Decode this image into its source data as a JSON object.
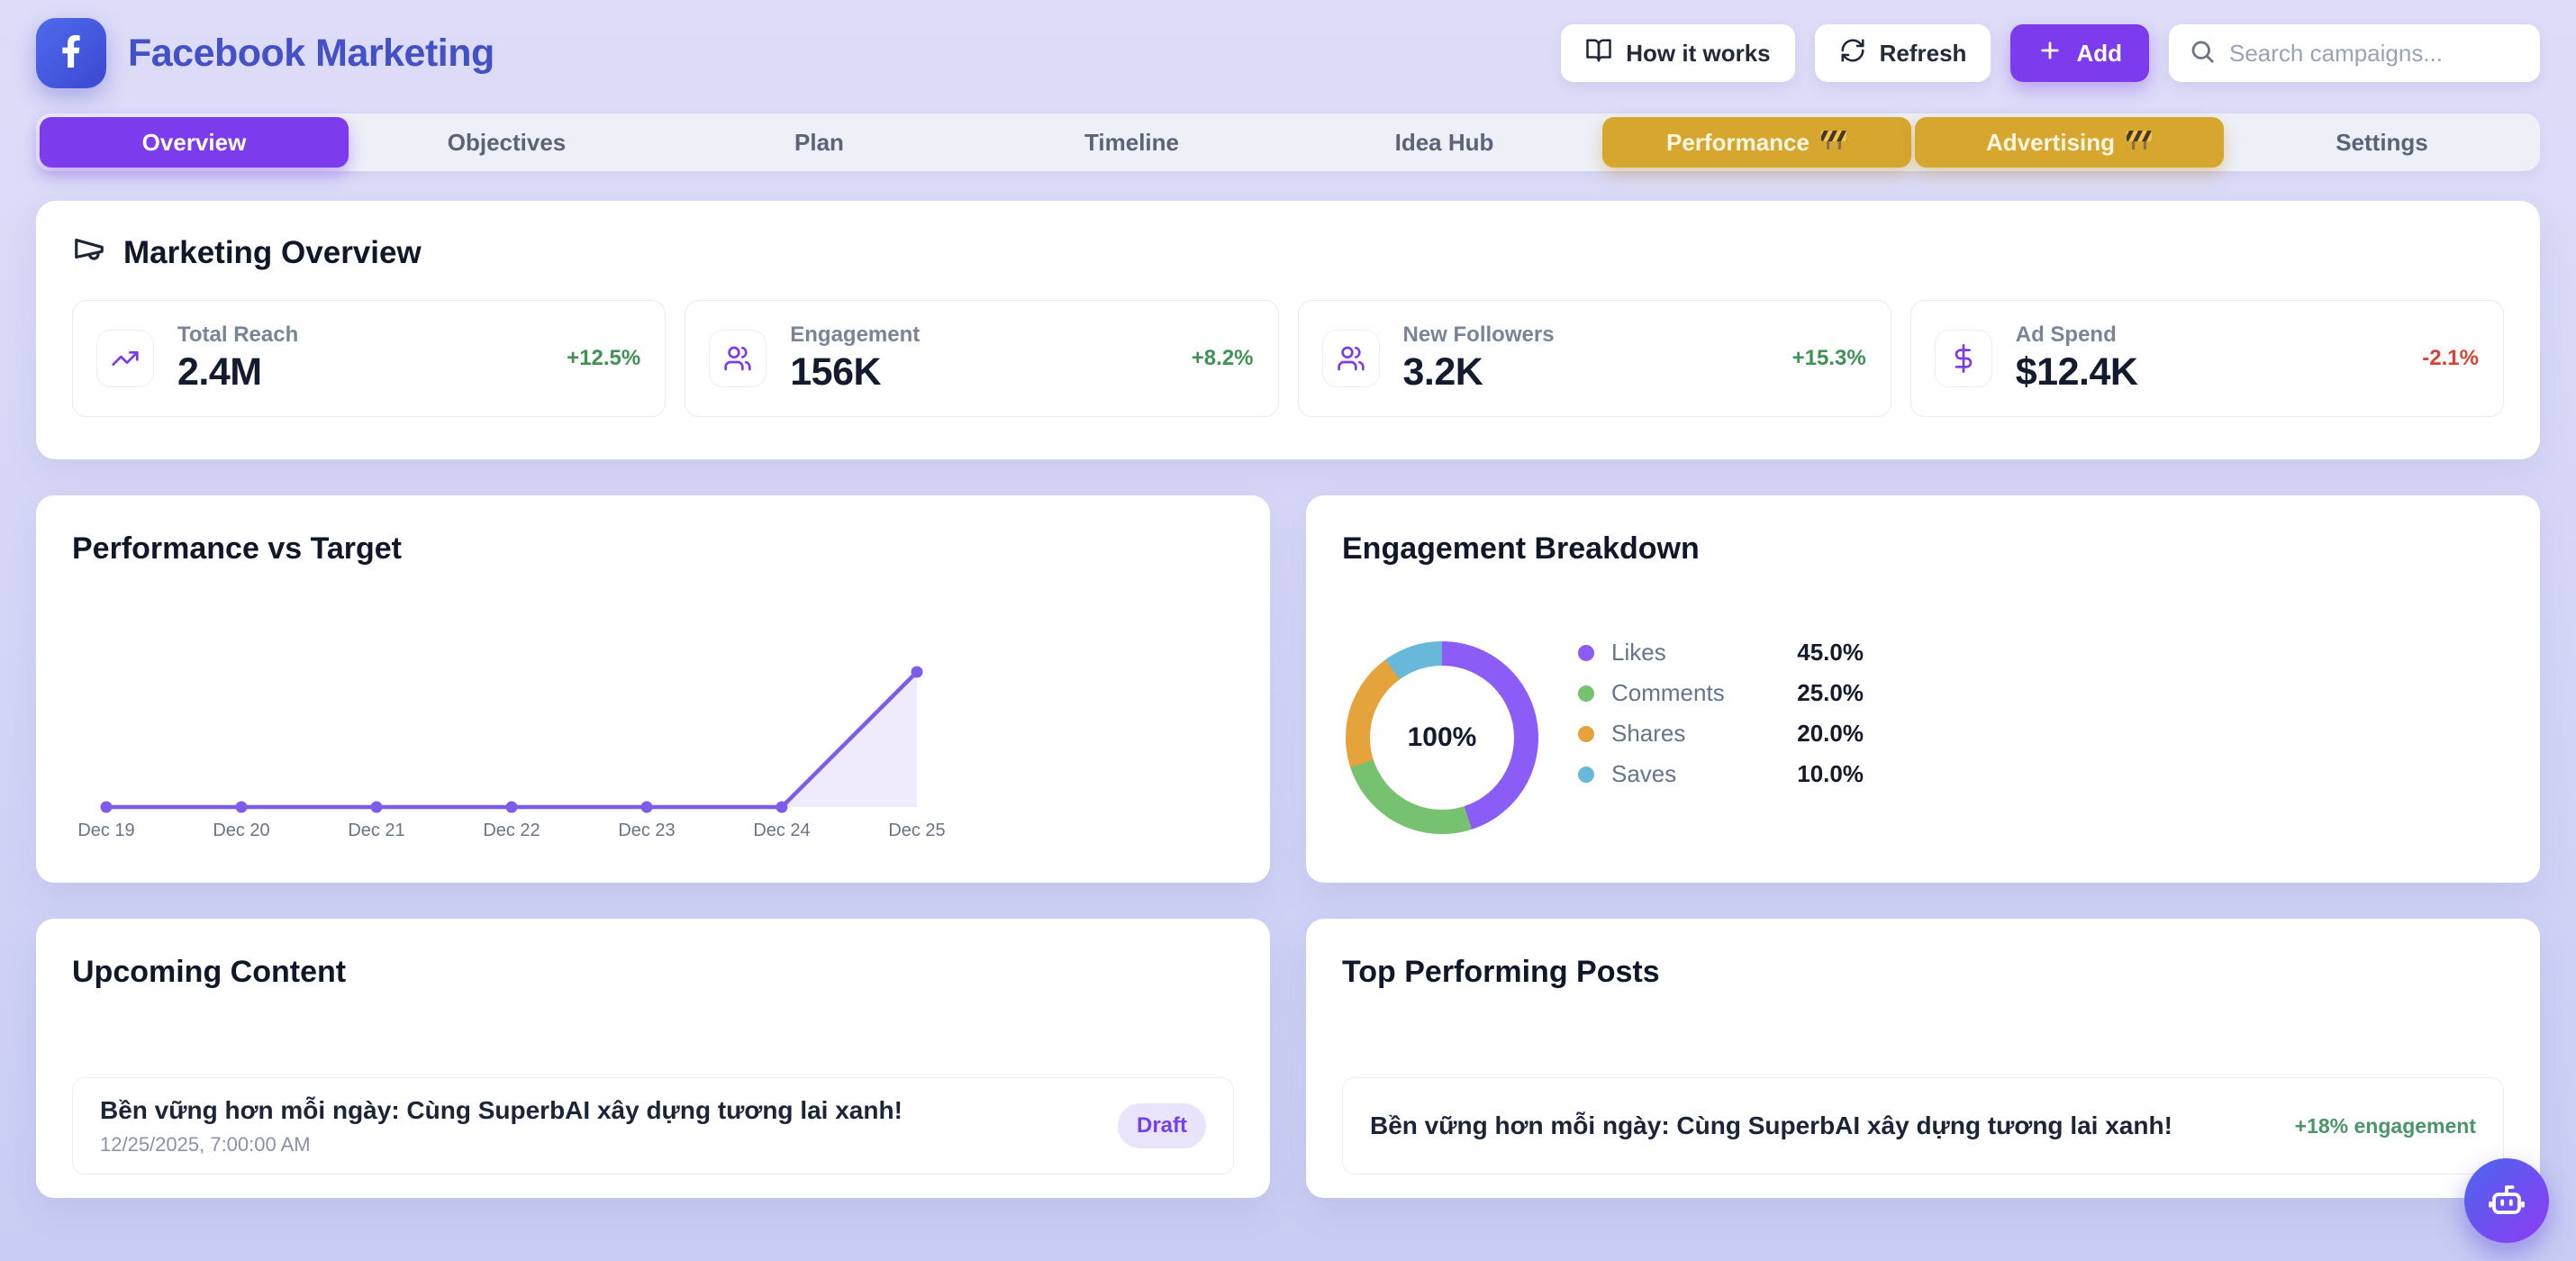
{
  "header": {
    "title": "Facebook Marketing",
    "how_it_works_label": "How it works",
    "refresh_label": "Refresh",
    "add_label": "Add",
    "search_placeholder": "Search campaigns..."
  },
  "tabs": [
    {
      "label": "Overview",
      "state": "active"
    },
    {
      "label": "Objectives",
      "state": "normal"
    },
    {
      "label": "Plan",
      "state": "normal"
    },
    {
      "label": "Timeline",
      "state": "normal"
    },
    {
      "label": "Idea Hub",
      "state": "normal"
    },
    {
      "label": "Performance",
      "state": "gold",
      "badge": "construction"
    },
    {
      "label": "Advertising",
      "state": "gold",
      "badge": "construction"
    },
    {
      "label": "Settings",
      "state": "normal"
    }
  ],
  "overview": {
    "title": "Marketing Overview",
    "stats": [
      {
        "icon": "trending-up-icon",
        "label": "Total Reach",
        "value": "2.4M",
        "delta": "+12.5%",
        "delta_dir": "up"
      },
      {
        "icon": "users-icon",
        "label": "Engagement",
        "value": "156K",
        "delta": "+8.2%",
        "delta_dir": "up"
      },
      {
        "icon": "users-icon",
        "label": "New Followers",
        "value": "3.2K",
        "delta": "+15.3%",
        "delta_dir": "up"
      },
      {
        "icon": "dollar-icon",
        "label": "Ad Spend",
        "value": "$12.4K",
        "delta": "-2.1%",
        "delta_dir": "down"
      }
    ]
  },
  "chart_data": [
    {
      "type": "line",
      "title": "Performance vs Target",
      "x": [
        "Dec 19",
        "Dec 20",
        "Dec 21",
        "Dec 22",
        "Dec 23",
        "Dec 24",
        "Dec 25"
      ],
      "series": [
        {
          "name": "performance",
          "values": [
            0,
            0,
            0,
            0,
            0,
            0,
            1
          ]
        }
      ],
      "xlabel": "",
      "ylabel": "",
      "grid": false,
      "area_fill": true,
      "line_color": "#7c5ce8",
      "legend_position": "none"
    },
    {
      "type": "pie",
      "title": "Engagement Breakdown",
      "labels": [
        "Likes",
        "Comments",
        "Shares",
        "Saves"
      ],
      "values": [
        45.0,
        25.0,
        20.0,
        10.0
      ],
      "value_labels": [
        "45.0%",
        "25.0%",
        "20.0%",
        "10.0%"
      ],
      "colors": [
        "#8b5cf6",
        "#77c271",
        "#e5a33c",
        "#67b8d9"
      ],
      "center_label": "100%",
      "donut": true,
      "legend_position": "right"
    }
  ],
  "upcoming": {
    "title": "Upcoming Content",
    "items": [
      {
        "title": "Bền vững hơn mỗi ngày: Cùng SuperbAI xây dựng tương lai xanh!",
        "datetime": "12/25/2025, 7:00:00 AM",
        "status": "Draft"
      }
    ]
  },
  "top_posts": {
    "title": "Top Performing Posts",
    "items": [
      {
        "title": "Bền vững hơn mỗi ngày: Cùng SuperbAI xây dựng tương lai xanh!",
        "metric": "+18% engagement"
      }
    ]
  },
  "colors": {
    "accent_purple": "#7c3bec",
    "gold": "#d7a62e",
    "positive_green": "#3f9154",
    "negative_red": "#d64333",
    "brand_title": "#4450c6",
    "line_chart": "#7c5ce8",
    "donut_likes": "#8b5cf6",
    "donut_comments": "#77c271",
    "donut_shares": "#e5a33c",
    "donut_saves": "#67b8d9",
    "draft_badge_bg": "#e9e4fb",
    "draft_badge_text": "#7442e8"
  }
}
